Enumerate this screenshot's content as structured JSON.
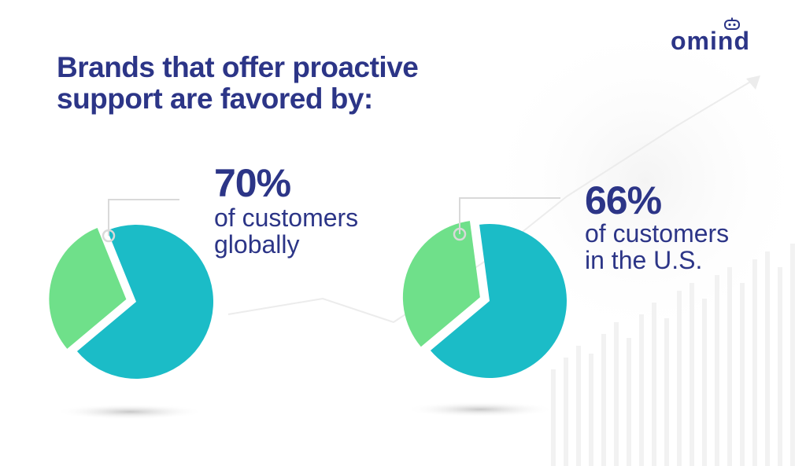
{
  "title": {
    "line1": "Brands that offer proactive",
    "line2": "support are favored by:"
  },
  "logo": {
    "text": "omind"
  },
  "colors": {
    "title": "#2c3587",
    "teal": "#1bbcc7",
    "green": "#6fe08a",
    "line": "#d9d9d9"
  },
  "chart_data": [
    {
      "type": "pie",
      "values": [
        70,
        30
      ],
      "highlight_label": "70%",
      "caption": [
        "of customers",
        "globally"
      ]
    },
    {
      "type": "pie",
      "values": [
        66,
        34
      ],
      "highlight_label": "66%",
      "caption": [
        "of customers",
        "in the U.S."
      ]
    }
  ]
}
